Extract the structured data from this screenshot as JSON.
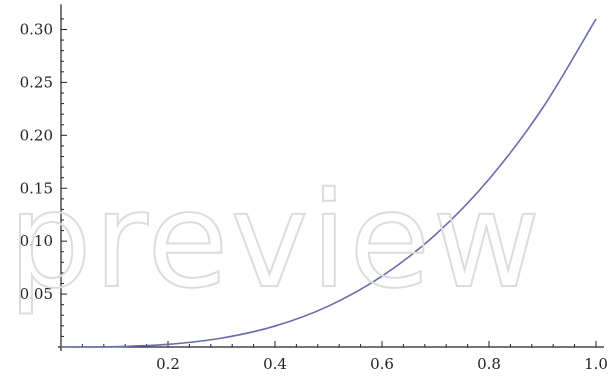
{
  "chart_data": {
    "type": "line",
    "title": "",
    "xlabel": "",
    "ylabel": "",
    "xlim": [
      0,
      1.0
    ],
    "ylim": [
      0,
      0.32
    ],
    "x_ticks": [
      {
        "value": 0.2,
        "label": "0.2"
      },
      {
        "value": 0.4,
        "label": "0.4"
      },
      {
        "value": 0.6,
        "label": "0.6"
      },
      {
        "value": 0.8,
        "label": "0.8"
      },
      {
        "value": 1.0,
        "label": "1.0"
      }
    ],
    "y_ticks": [
      {
        "value": 0.05,
        "label": "0.05"
      },
      {
        "value": 0.1,
        "label": "0.10"
      },
      {
        "value": 0.15,
        "label": "0.15"
      },
      {
        "value": 0.2,
        "label": "0.20"
      },
      {
        "value": 0.25,
        "label": "0.25"
      },
      {
        "value": 0.3,
        "label": "0.30"
      }
    ],
    "grid": false,
    "series": [
      {
        "color": "#6a6aae",
        "x": [
          0.0,
          0.1,
          0.2,
          0.3,
          0.4,
          0.5,
          0.6,
          0.7,
          0.8,
          0.9,
          1.0
        ],
        "y": [
          0.0,
          0.0003,
          0.0025,
          0.0084,
          0.0198,
          0.0387,
          0.0669,
          0.1062,
          0.1585,
          0.2257,
          0.31
        ]
      }
    ]
  },
  "watermark": "preview"
}
